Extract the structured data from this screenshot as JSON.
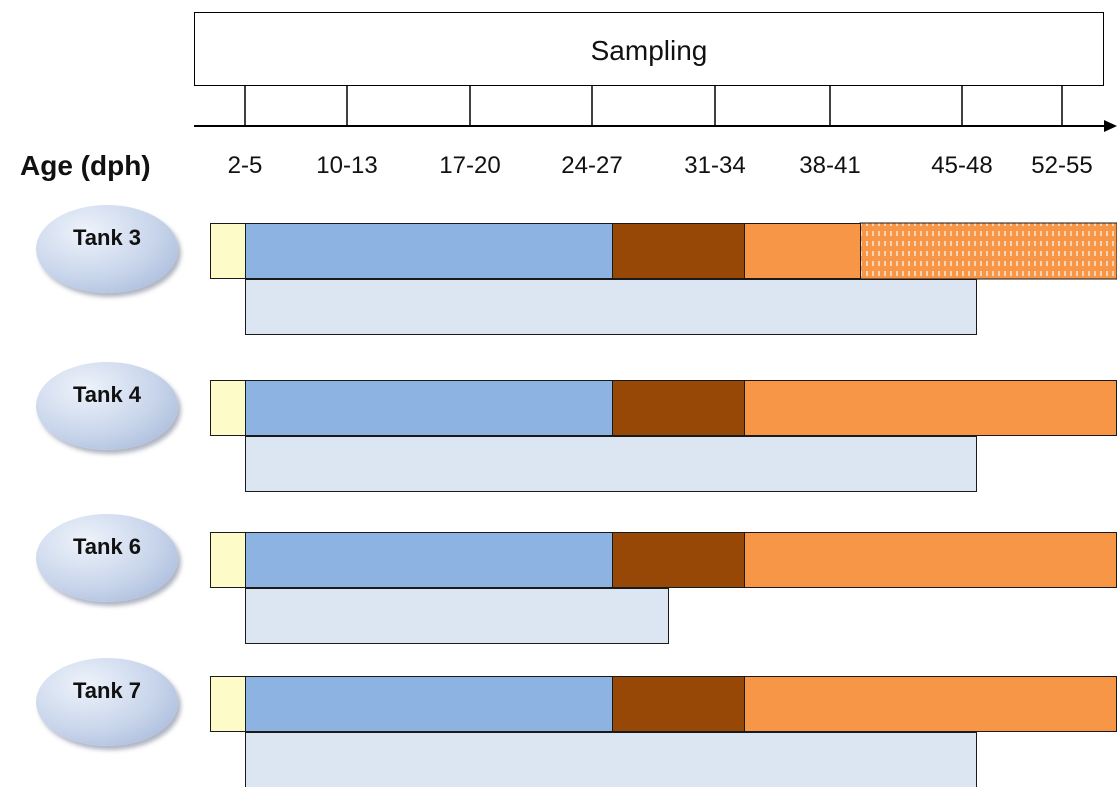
{
  "sampling": {
    "title": "Sampling"
  },
  "age_axis": {
    "label": "Age (dph)",
    "ticks": [
      "2-5",
      "10-13",
      "17-20",
      "24-27",
      "31-34",
      "38-41",
      "45-48",
      "52-55"
    ]
  },
  "colors": {
    "cream": "#fdfcc9",
    "light_blue": "#8db3e2",
    "brown": "#974806",
    "orange": "#f79646",
    "hatched_orange": "#f79646",
    "pale_blue": "#dce6f2"
  },
  "tanks": [
    {
      "label": "Tank 3",
      "hatched_last": true,
      "lower_bar_end": "45-48"
    },
    {
      "label": "Tank 4",
      "hatched_last": false,
      "lower_bar_end": "45-48"
    },
    {
      "label": "Tank 6",
      "hatched_last": false,
      "lower_bar_end": "24-27"
    },
    {
      "label": "Tank 7",
      "hatched_last": false,
      "lower_bar_end": "45-48"
    }
  ]
}
